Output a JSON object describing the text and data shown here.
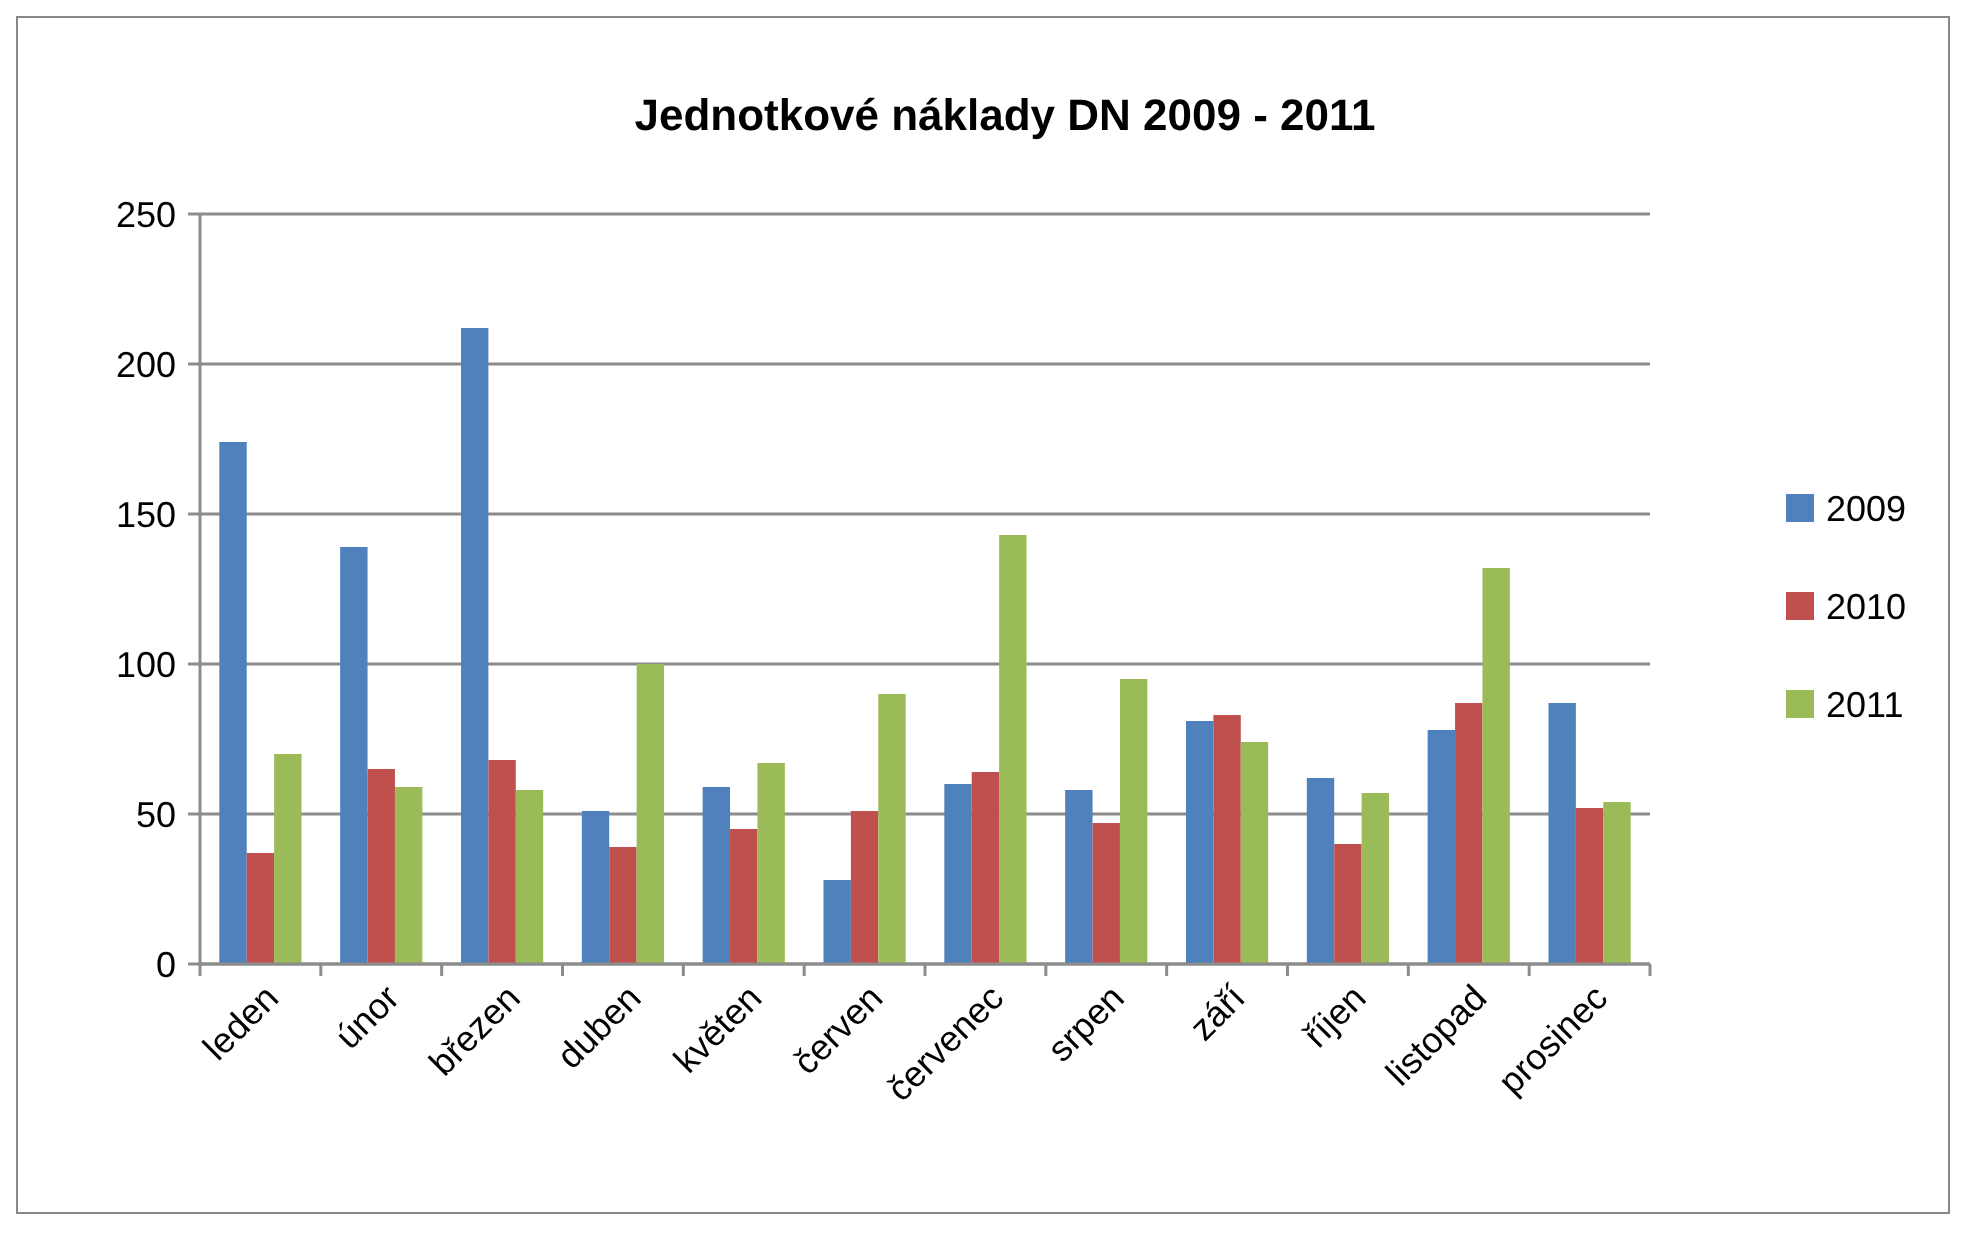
{
  "chart_data": {
    "type": "bar",
    "title": "Jednotkové náklady DN 2009 - 2011",
    "categories": [
      "leden",
      "únor",
      "březen",
      "duben",
      "květen",
      "červen",
      "červenec",
      "srpen",
      "září",
      "říjen",
      "listopad",
      "prosinec"
    ],
    "series": [
      {
        "name": "2009",
        "color": "#4f81bd",
        "values": [
          174,
          139,
          212,
          51,
          59,
          28,
          60,
          58,
          81,
          62,
          78,
          87
        ]
      },
      {
        "name": "2010",
        "color": "#c0504d",
        "values": [
          37,
          65,
          68,
          39,
          45,
          51,
          64,
          47,
          83,
          40,
          87,
          52
        ]
      },
      {
        "name": "2011",
        "color": "#9bbb59",
        "values": [
          70,
          59,
          58,
          100,
          67,
          90,
          143,
          95,
          74,
          57,
          132,
          54
        ]
      }
    ],
    "ylim": [
      0,
      250
    ],
    "yticks": [
      0,
      50,
      100,
      150,
      200,
      250
    ],
    "grid": "y",
    "legend": "right"
  }
}
